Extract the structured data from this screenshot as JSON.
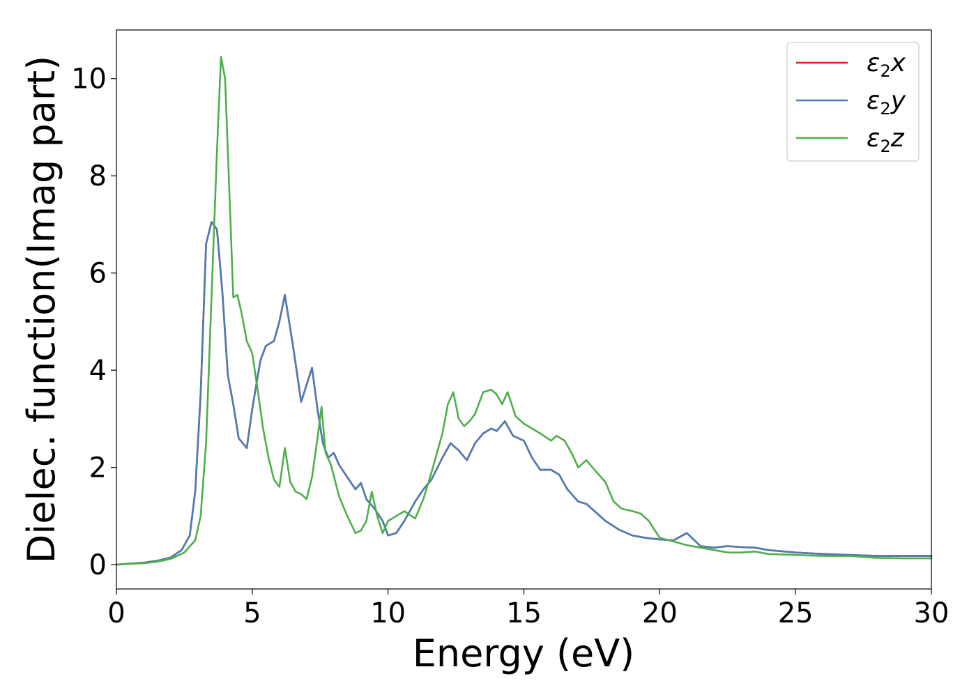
{
  "chart_data": {
    "type": "line",
    "xlabel": "Energy (eV)",
    "ylabel": "Dielec. function(Imag part)",
    "xlim": [
      0,
      30
    ],
    "ylim": [
      -0.5,
      11
    ],
    "xticks": [
      0,
      5,
      10,
      15,
      20,
      25,
      30
    ],
    "yticks": [
      0,
      2,
      4,
      6,
      8,
      10
    ],
    "grid": false,
    "legend": "top-right",
    "series": [
      {
        "name": "ε₂x",
        "legend_main": "ε",
        "legend_sub": "2",
        "legend_var": "x",
        "color": "#e41a1c",
        "x": [
          0,
          1,
          1.5,
          2,
          2.4,
          2.7,
          2.9,
          3.1,
          3.3,
          3.5,
          3.7,
          3.9,
          4.1,
          4.3,
          4.5,
          4.8,
          5.0,
          5.3,
          5.5,
          5.8,
          6.0,
          6.2,
          6.5,
          6.8,
          7.0,
          7.2,
          7.4,
          7.6,
          7.8,
          8.0,
          8.2,
          8.5,
          8.8,
          9.0,
          9.2,
          9.5,
          9.8,
          10.0,
          10.3,
          10.6,
          11.0,
          11.3,
          11.6,
          12.0,
          12.3,
          12.6,
          12.9,
          13.2,
          13.5,
          13.8,
          14.0,
          14.3,
          14.6,
          15.0,
          15.3,
          15.6,
          16.0,
          16.3,
          16.6,
          17.0,
          17.3,
          17.6,
          18.0,
          18.5,
          19.0,
          19.5,
          20.0,
          20.5,
          21.0,
          21.5,
          22.0,
          22.5,
          23.0,
          23.5,
          24.0,
          25.0,
          26.0,
          27.0,
          28.0,
          29.0,
          30.0
        ],
        "y": [
          0,
          0.04,
          0.08,
          0.15,
          0.3,
          0.6,
          1.5,
          3.5,
          6.6,
          7.05,
          6.9,
          5.6,
          3.9,
          3.3,
          2.6,
          2.4,
          3.2,
          4.2,
          4.5,
          4.6,
          5.0,
          5.55,
          4.5,
          3.35,
          3.7,
          4.05,
          3.2,
          2.5,
          2.2,
          2.3,
          2.05,
          1.8,
          1.55,
          1.68,
          1.35,
          1.15,
          0.9,
          0.6,
          0.65,
          0.9,
          1.3,
          1.55,
          1.75,
          2.2,
          2.5,
          2.35,
          2.15,
          2.5,
          2.7,
          2.8,
          2.75,
          2.95,
          2.65,
          2.55,
          2.2,
          1.95,
          1.95,
          1.85,
          1.55,
          1.3,
          1.25,
          1.1,
          0.9,
          0.72,
          0.6,
          0.55,
          0.52,
          0.5,
          0.65,
          0.38,
          0.35,
          0.38,
          0.36,
          0.35,
          0.3,
          0.25,
          0.22,
          0.2,
          0.18,
          0.18,
          0.18
        ]
      },
      {
        "name": "ε₂y",
        "legend_main": "ε",
        "legend_sub": "2",
        "legend_var": "y",
        "color": "#4a7db3",
        "x": [
          0,
          1,
          1.5,
          2,
          2.4,
          2.7,
          2.9,
          3.1,
          3.3,
          3.5,
          3.7,
          3.9,
          4.1,
          4.3,
          4.5,
          4.8,
          5.0,
          5.3,
          5.5,
          5.8,
          6.0,
          6.2,
          6.5,
          6.8,
          7.0,
          7.2,
          7.4,
          7.6,
          7.8,
          8.0,
          8.2,
          8.5,
          8.8,
          9.0,
          9.2,
          9.5,
          9.8,
          10.0,
          10.3,
          10.6,
          11.0,
          11.3,
          11.6,
          12.0,
          12.3,
          12.6,
          12.9,
          13.2,
          13.5,
          13.8,
          14.0,
          14.3,
          14.6,
          15.0,
          15.3,
          15.6,
          16.0,
          16.3,
          16.6,
          17.0,
          17.3,
          17.6,
          18.0,
          18.5,
          19.0,
          19.5,
          20.0,
          20.5,
          21.0,
          21.5,
          22.0,
          22.5,
          23.0,
          23.5,
          24.0,
          25.0,
          26.0,
          27.0,
          28.0,
          29.0,
          30.0
        ],
        "y": [
          0,
          0.04,
          0.08,
          0.15,
          0.3,
          0.6,
          1.5,
          3.5,
          6.6,
          7.05,
          6.9,
          5.6,
          3.9,
          3.3,
          2.6,
          2.4,
          3.2,
          4.2,
          4.5,
          4.6,
          5.0,
          5.55,
          4.5,
          3.35,
          3.7,
          4.05,
          3.2,
          2.5,
          2.2,
          2.3,
          2.05,
          1.8,
          1.55,
          1.68,
          1.35,
          1.15,
          0.9,
          0.6,
          0.65,
          0.9,
          1.3,
          1.55,
          1.75,
          2.2,
          2.5,
          2.35,
          2.15,
          2.5,
          2.7,
          2.8,
          2.75,
          2.95,
          2.65,
          2.55,
          2.2,
          1.95,
          1.95,
          1.85,
          1.55,
          1.3,
          1.25,
          1.1,
          0.9,
          0.72,
          0.6,
          0.55,
          0.52,
          0.5,
          0.65,
          0.38,
          0.35,
          0.38,
          0.36,
          0.35,
          0.3,
          0.25,
          0.22,
          0.2,
          0.18,
          0.18,
          0.18
        ]
      },
      {
        "name": "ε₂z",
        "legend_main": "ε",
        "legend_sub": "2",
        "legend_var": "z",
        "color": "#4daf4a",
        "x": [
          0,
          1,
          1.5,
          2,
          2.5,
          2.9,
          3.1,
          3.3,
          3.5,
          3.7,
          3.85,
          4.0,
          4.15,
          4.3,
          4.45,
          4.6,
          4.8,
          5.0,
          5.2,
          5.4,
          5.6,
          5.8,
          6.0,
          6.2,
          6.4,
          6.6,
          6.8,
          7.0,
          7.2,
          7.4,
          7.55,
          7.7,
          7.9,
          8.2,
          8.5,
          8.8,
          9.0,
          9.2,
          9.4,
          9.6,
          9.8,
          10.0,
          10.3,
          10.6,
          11.0,
          11.3,
          11.6,
          12.0,
          12.2,
          12.4,
          12.6,
          12.8,
          13.0,
          13.2,
          13.5,
          13.8,
          14.0,
          14.2,
          14.4,
          14.7,
          15.0,
          15.3,
          15.6,
          16.0,
          16.2,
          16.5,
          16.8,
          17.0,
          17.3,
          17.6,
          18.0,
          18.3,
          18.6,
          19.0,
          19.3,
          19.6,
          20.0,
          20.5,
          21.0,
          21.5,
          22.0,
          22.5,
          23.0,
          23.5,
          24.0,
          25.0,
          26.0,
          27.0,
          28.0,
          29.0,
          30.0
        ],
        "y": [
          0,
          0.03,
          0.06,
          0.12,
          0.25,
          0.5,
          1.0,
          2.5,
          5.5,
          8.5,
          10.45,
          10.0,
          7.8,
          5.5,
          5.55,
          5.2,
          4.6,
          4.35,
          3.6,
          2.8,
          2.2,
          1.75,
          1.6,
          2.4,
          1.7,
          1.5,
          1.45,
          1.35,
          1.8,
          2.6,
          3.25,
          2.3,
          2.05,
          1.4,
          1.0,
          0.65,
          0.7,
          0.9,
          1.5,
          1.0,
          0.65,
          0.9,
          1.0,
          1.1,
          0.95,
          1.35,
          1.9,
          2.7,
          3.3,
          3.55,
          3.0,
          2.85,
          2.95,
          3.1,
          3.55,
          3.6,
          3.5,
          3.3,
          3.55,
          3.05,
          2.9,
          2.8,
          2.7,
          2.55,
          2.65,
          2.55,
          2.25,
          2.0,
          2.15,
          1.95,
          1.7,
          1.3,
          1.15,
          1.1,
          1.05,
          0.9,
          0.55,
          0.48,
          0.4,
          0.35,
          0.3,
          0.25,
          0.25,
          0.27,
          0.22,
          0.2,
          0.18,
          0.18,
          0.14,
          0.13,
          0.13
        ]
      }
    ]
  }
}
